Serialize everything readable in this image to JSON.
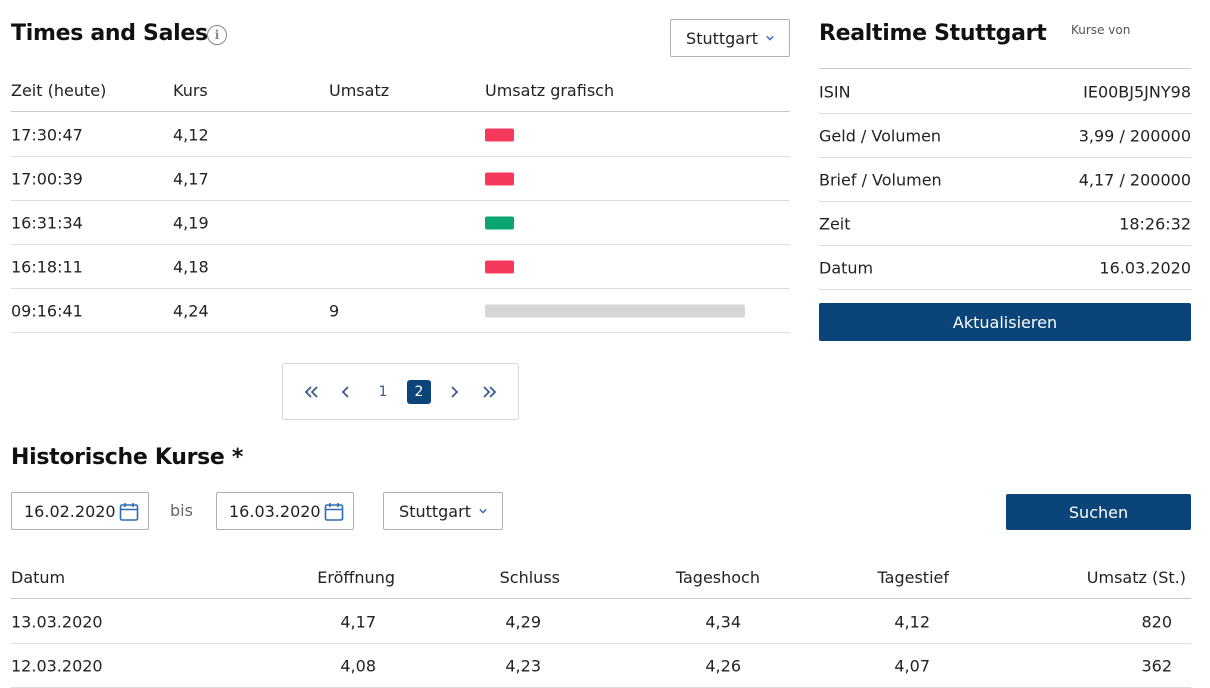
{
  "times_sales": {
    "title": "Times and Sales",
    "exchange_select": "Stuttgart",
    "columns": [
      "Zeit (heute)",
      "Kurs",
      "Umsatz",
      "Umsatz grafisch"
    ],
    "rows": [
      {
        "time": "17:30:47",
        "price": "4,12",
        "volume": "",
        "bar_color": "#f6385d",
        "bar_fraction": 0.11
      },
      {
        "time": "17:00:39",
        "price": "4,17",
        "volume": "",
        "bar_color": "#f6385d",
        "bar_fraction": 0.11
      },
      {
        "time": "16:31:34",
        "price": "4,19",
        "volume": "",
        "bar_color": "#0aa571",
        "bar_fraction": 0.11
      },
      {
        "time": "16:18:11",
        "price": "4,18",
        "volume": "",
        "bar_color": "#f6385d",
        "bar_fraction": 0.11
      },
      {
        "time": "09:16:41",
        "price": "4,24",
        "volume": "9",
        "bar_color": "#d6d6d6",
        "bar_fraction": 1.0
      }
    ],
    "pagination": {
      "first_icon": "double-chevron-left-icon",
      "prev_icon": "chevron-left-icon",
      "pages": [
        "1",
        "2"
      ],
      "current_page": "2",
      "next_icon": "chevron-right-icon",
      "last_icon": "double-chevron-right-icon"
    }
  },
  "realtime": {
    "title": "Realtime Stuttgart",
    "source_label": "Kurse von",
    "rows": [
      {
        "label": "ISIN",
        "value": "IE00BJ5JNY98"
      },
      {
        "label": "Geld / Volumen",
        "value": "3,99 / 200000"
      },
      {
        "label": "Brief / Volumen",
        "value": "4,17 / 200000"
      },
      {
        "label": "Zeit",
        "value": "18:26:32"
      },
      {
        "label": "Datum",
        "value": "16.03.2020"
      }
    ],
    "refresh_button": "Aktualisieren"
  },
  "historic": {
    "title": "Historische Kurse *",
    "from_date": "16.02.2020",
    "to_label": "bis",
    "to_date": "16.03.2020",
    "exchange_select": "Stuttgart",
    "search_button": "Suchen",
    "columns": [
      "Datum",
      "Eröffnung",
      "Schluss",
      "Tageshoch",
      "Tagestief",
      "Umsatz (St.)"
    ],
    "rows": [
      {
        "date": "13.03.2020",
        "open": "4,17",
        "close": "4,29",
        "high": "4,34",
        "low": "4,12",
        "volume": "820"
      },
      {
        "date": "12.03.2020",
        "open": "4,08",
        "close": "4,23",
        "high": "4,26",
        "low": "4,07",
        "volume": "362"
      }
    ]
  },
  "colors": {
    "primary": "#0b4479",
    "down": "#f6385d",
    "up": "#0aa571",
    "neutral_bar": "#d6d6d6"
  }
}
